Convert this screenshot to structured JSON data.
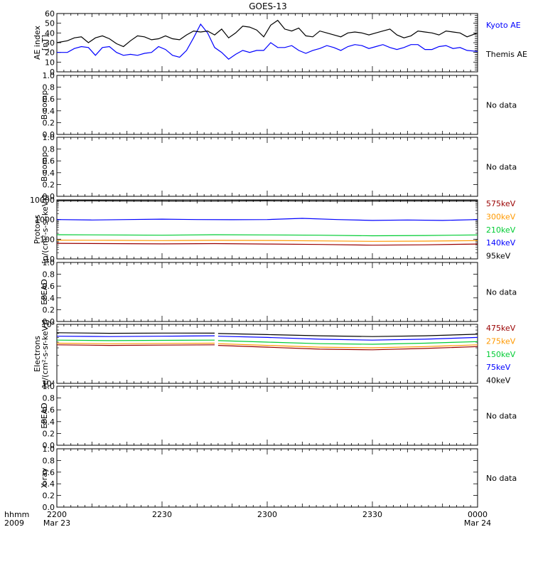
{
  "figure": {
    "title": "GOES-13",
    "time_axis_label": [
      "hhmm",
      "2009"
    ],
    "time_ticks": [
      {
        "label": "2200",
        "date": "Mar 23",
        "minutes": 0
      },
      {
        "label": "2230",
        "date": "",
        "minutes": 30
      },
      {
        "label": "2300",
        "date": "",
        "minutes": 60
      },
      {
        "label": "2330",
        "date": "",
        "minutes": 90
      },
      {
        "label": "0000",
        "date": "Mar 24",
        "minutes": 120
      }
    ]
  },
  "chart_data": [
    {
      "type": "line",
      "panel": "ae-index",
      "ylabel": [
        "AE index",
        "[nT]"
      ],
      "ylim": [
        0,
        60
      ],
      "yticks": [
        0,
        10,
        20,
        30,
        40,
        50,
        60
      ],
      "x_unit": "minutes after 2200 UT",
      "series": [
        {
          "name": "Kyoto AE",
          "color": "#0000ff",
          "x": [
            0,
            3,
            5,
            7,
            9,
            11,
            13,
            15,
            17,
            19,
            21,
            23,
            25,
            27,
            29,
            31,
            33,
            35,
            37,
            39,
            41,
            43,
            45,
            47,
            49,
            51,
            53,
            55,
            57,
            59,
            61,
            63,
            65,
            67,
            69,
            71,
            73,
            75,
            77,
            79,
            81,
            83,
            85,
            87,
            89,
            91,
            93,
            95,
            97,
            99,
            101,
            103,
            105,
            107,
            109,
            111,
            113,
            115,
            117,
            120
          ],
          "y": [
            20,
            20,
            24,
            26,
            25,
            17,
            25,
            26,
            20,
            17,
            18,
            17,
            19,
            20,
            26,
            23,
            17,
            15,
            22,
            35,
            49,
            40,
            25,
            20,
            13,
            18,
            22,
            20,
            22,
            22,
            30,
            25,
            25,
            27,
            22,
            19,
            22,
            24,
            27,
            25,
            22,
            26,
            28,
            27,
            24,
            26,
            28,
            25,
            23,
            25,
            28,
            28,
            23,
            23,
            26,
            27,
            24,
            25,
            22,
            21
          ]
        },
        {
          "name": "Themis AE",
          "color": "#000000",
          "x": [
            0,
            3,
            5,
            7,
            9,
            11,
            13,
            15,
            17,
            19,
            21,
            23,
            25,
            27,
            29,
            31,
            33,
            35,
            37,
            39,
            41,
            43,
            45,
            47,
            49,
            51,
            53,
            55,
            57,
            59,
            61,
            63,
            65,
            67,
            69,
            71,
            73,
            75,
            77,
            79,
            81,
            83,
            85,
            87,
            89,
            91,
            93,
            95,
            97,
            99,
            101,
            103,
            105,
            107,
            109,
            111,
            113,
            115,
            117,
            120
          ],
          "y": [
            30,
            32,
            35,
            36,
            30,
            35,
            37,
            34,
            29,
            26,
            32,
            37,
            36,
            33,
            34,
            37,
            34,
            33,
            38,
            42,
            41,
            42,
            38,
            44,
            35,
            40,
            47,
            46,
            43,
            36,
            48,
            53,
            44,
            42,
            45,
            37,
            36,
            42,
            40,
            38,
            36,
            40,
            41,
            40,
            38,
            40,
            42,
            44,
            38,
            35,
            37,
            42,
            41,
            40,
            38,
            42,
            41,
            40,
            36,
            40
          ]
        }
      ]
    },
    {
      "type": "line",
      "panel": "b-comp-1",
      "ylabel": [
        "B comp"
      ],
      "ylim": [
        0,
        1
      ],
      "yticks": [
        0.0,
        0.2,
        0.4,
        0.6,
        0.8,
        1.0
      ],
      "status": "No data",
      "series": []
    },
    {
      "type": "line",
      "panel": "b-comp-2",
      "ylabel": [
        "B comp"
      ],
      "ylim": [
        0,
        1
      ],
      "yticks": [
        0.0,
        0.2,
        0.4,
        0.6,
        0.8,
        1.0
      ],
      "status": "No data",
      "series": []
    },
    {
      "type": "line",
      "panel": "protons",
      "ylabel": [
        "Protons",
        "[p/(cm²-s-sr-keV)]"
      ],
      "ylim": [
        10,
        10000
      ],
      "y_scale": "log",
      "yticks": [
        10,
        100,
        1000,
        10000
      ],
      "x_unit": "minutes after 2200 UT",
      "series": [
        {
          "name": "95keV",
          "color": "#000000",
          "x": [
            0,
            20,
            40,
            60,
            80,
            100,
            120
          ],
          "y": [
            9000,
            8800,
            8700,
            8900,
            8700,
            8800,
            8800
          ]
        },
        {
          "name": "140keV",
          "color": "#0000ff",
          "x": [
            0,
            10,
            20,
            30,
            40,
            50,
            60,
            70,
            80,
            90,
            100,
            110,
            120
          ],
          "y": [
            1000,
            950,
            1000,
            1050,
            1000,
            980,
            1000,
            1150,
            1000,
            900,
            950,
            900,
            1000
          ]
        },
        {
          "name": "210keV",
          "color": "#00cc33",
          "x": [
            0,
            15,
            30,
            45,
            60,
            75,
            90,
            105,
            120
          ],
          "y": [
            170,
            165,
            160,
            170,
            165,
            160,
            150,
            155,
            165
          ]
        },
        {
          "name": "300keV",
          "color": "#ff9900",
          "x": [
            0,
            15,
            30,
            45,
            60,
            75,
            90,
            105,
            120
          ],
          "y": [
            90,
            88,
            85,
            88,
            86,
            82,
            78,
            80,
            85
          ]
        },
        {
          "name": "575keV",
          "color": "#990000",
          "x": [
            0,
            15,
            30,
            45,
            60,
            75,
            90,
            105,
            120
          ],
          "y": [
            62,
            60,
            58,
            60,
            57,
            54,
            50,
            52,
            57
          ]
        }
      ]
    },
    {
      "type": "line",
      "panel": "epead-1",
      "ylabel": [
        "EPEAD"
      ],
      "ylim": [
        0,
        1
      ],
      "yticks": [
        0.0,
        0.2,
        0.4,
        0.6,
        0.8,
        1.0
      ],
      "status": "No data",
      "series": []
    },
    {
      "type": "line",
      "panel": "electrons",
      "ylabel": [
        "Electrons",
        "[e/(cm²-s-sr-keV)]"
      ],
      "ylim": [
        10000,
        100000
      ],
      "y_scale": "log",
      "yticks": [
        10000,
        100000
      ],
      "x_unit": "minutes after 2200 UT",
      "gap_minutes": [
        45,
        46
      ],
      "series": [
        {
          "name": "40keV",
          "color": "#000000",
          "x": [
            0,
            15,
            30,
            45,
            46,
            60,
            75,
            90,
            105,
            120
          ],
          "y": [
            72000,
            70500,
            71000,
            70800,
            70000,
            67000,
            64000,
            62000,
            64000,
            68000
          ]
        },
        {
          "name": "75keV",
          "color": "#0000ff",
          "x": [
            0,
            15,
            30,
            45,
            46,
            60,
            75,
            90,
            105,
            120
          ],
          "y": [
            63000,
            62000,
            63000,
            64000,
            63000,
            60000,
            56000,
            54000,
            56000,
            60000
          ]
        },
        {
          "name": "150keV",
          "color": "#00cc33",
          "x": [
            0,
            15,
            30,
            45,
            46,
            60,
            75,
            90,
            105,
            120
          ],
          "y": [
            54000,
            53000,
            53500,
            54000,
            53000,
            50000,
            47000,
            46000,
            48000,
            51000
          ]
        },
        {
          "name": "275keV",
          "color": "#ff9900",
          "x": [
            0,
            15,
            30,
            45,
            46,
            60,
            75,
            90,
            105,
            120
          ],
          "y": [
            48000,
            47000,
            47500,
            48000,
            47000,
            44000,
            41000,
            40000,
            42000,
            45000
          ]
        },
        {
          "name": "475keV",
          "color": "#990000",
          "x": [
            0,
            15,
            30,
            45,
            46,
            60,
            75,
            90,
            105,
            120
          ],
          "y": [
            45000,
            44000,
            44500,
            45000,
            44000,
            41000,
            38000,
            37000,
            39000,
            42000
          ]
        }
      ]
    },
    {
      "type": "line",
      "panel": "epead-2",
      "ylabel": [
        "EPEAD"
      ],
      "ylim": [
        0,
        1
      ],
      "yticks": [
        0.0,
        0.2,
        0.4,
        0.6,
        0.8,
        1.0
      ],
      "status": "No data",
      "series": []
    },
    {
      "type": "line",
      "panel": "x-ray",
      "ylabel": [
        "X-ray"
      ],
      "ylim": [
        0,
        1
      ],
      "yticks": [
        0.0,
        0.2,
        0.4,
        0.6,
        0.8,
        1.0
      ],
      "status": "No data",
      "series": []
    }
  ]
}
